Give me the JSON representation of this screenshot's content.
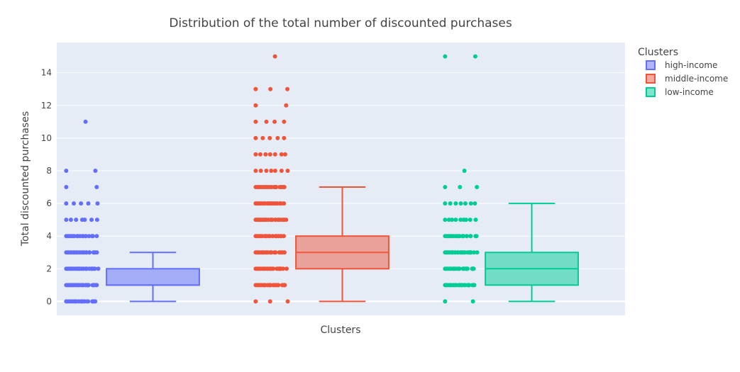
{
  "chart_data": {
    "type": "box",
    "title": "Distribution of the total number of discounted purchases",
    "xlabel": "Clusters",
    "ylabel": "Total discounted purchases",
    "ylim": [
      -0.85,
      15.85
    ],
    "yticks": [
      0,
      2,
      4,
      6,
      8,
      10,
      12,
      14
    ],
    "grid": true,
    "background": "#E5ECF6",
    "legend": {
      "title": "Clusters",
      "placement": "top-right"
    },
    "series": [
      {
        "name": "high-income",
        "color": "#636EFA",
        "box": {
          "min": 0,
          "q1": 1,
          "median": 1,
          "q3": 2,
          "max": 3
        },
        "points": [
          {
            "y": 0,
            "n": 18
          },
          {
            "y": 1,
            "n": 26
          },
          {
            "y": 2,
            "n": 26
          },
          {
            "y": 3,
            "n": 22
          },
          {
            "y": 4,
            "n": 18
          },
          {
            "y": 5,
            "n": 7
          },
          {
            "y": 6,
            "n": 5
          },
          {
            "y": 7,
            "n": 2
          },
          {
            "y": 8,
            "n": 2
          },
          {
            "y": 11,
            "n": 1
          }
        ]
      },
      {
        "name": "middle-income",
        "color": "#EF553B",
        "box": {
          "min": 0,
          "q1": 2,
          "median": 3,
          "q3": 4,
          "max": 7
        },
        "points": [
          {
            "y": 0,
            "n": 3
          },
          {
            "y": 1,
            "n": 22
          },
          {
            "y": 2,
            "n": 22
          },
          {
            "y": 3,
            "n": 22
          },
          {
            "y": 4,
            "n": 22
          },
          {
            "y": 5,
            "n": 22
          },
          {
            "y": 6,
            "n": 22
          },
          {
            "y": 7,
            "n": 20
          },
          {
            "y": 8,
            "n": 7
          },
          {
            "y": 9,
            "n": 7
          },
          {
            "y": 10,
            "n": 5
          },
          {
            "y": 11,
            "n": 4
          },
          {
            "y": 12,
            "n": 2
          },
          {
            "y": 13,
            "n": 3
          },
          {
            "y": 15,
            "n": 1
          }
        ]
      },
      {
        "name": "low-income",
        "color": "#00CC96",
        "box": {
          "min": 0,
          "q1": 1,
          "median": 2,
          "q3": 3,
          "max": 6
        },
        "points": [
          {
            "y": 0,
            "n": 2
          },
          {
            "y": 1,
            "n": 24
          },
          {
            "y": 2,
            "n": 26
          },
          {
            "y": 3,
            "n": 26
          },
          {
            "y": 4,
            "n": 22
          },
          {
            "y": 5,
            "n": 9
          },
          {
            "y": 6,
            "n": 7
          },
          {
            "y": 7,
            "n": 3
          },
          {
            "y": 8,
            "n": 1
          },
          {
            "y": 15,
            "n": 2
          }
        ]
      }
    ]
  }
}
